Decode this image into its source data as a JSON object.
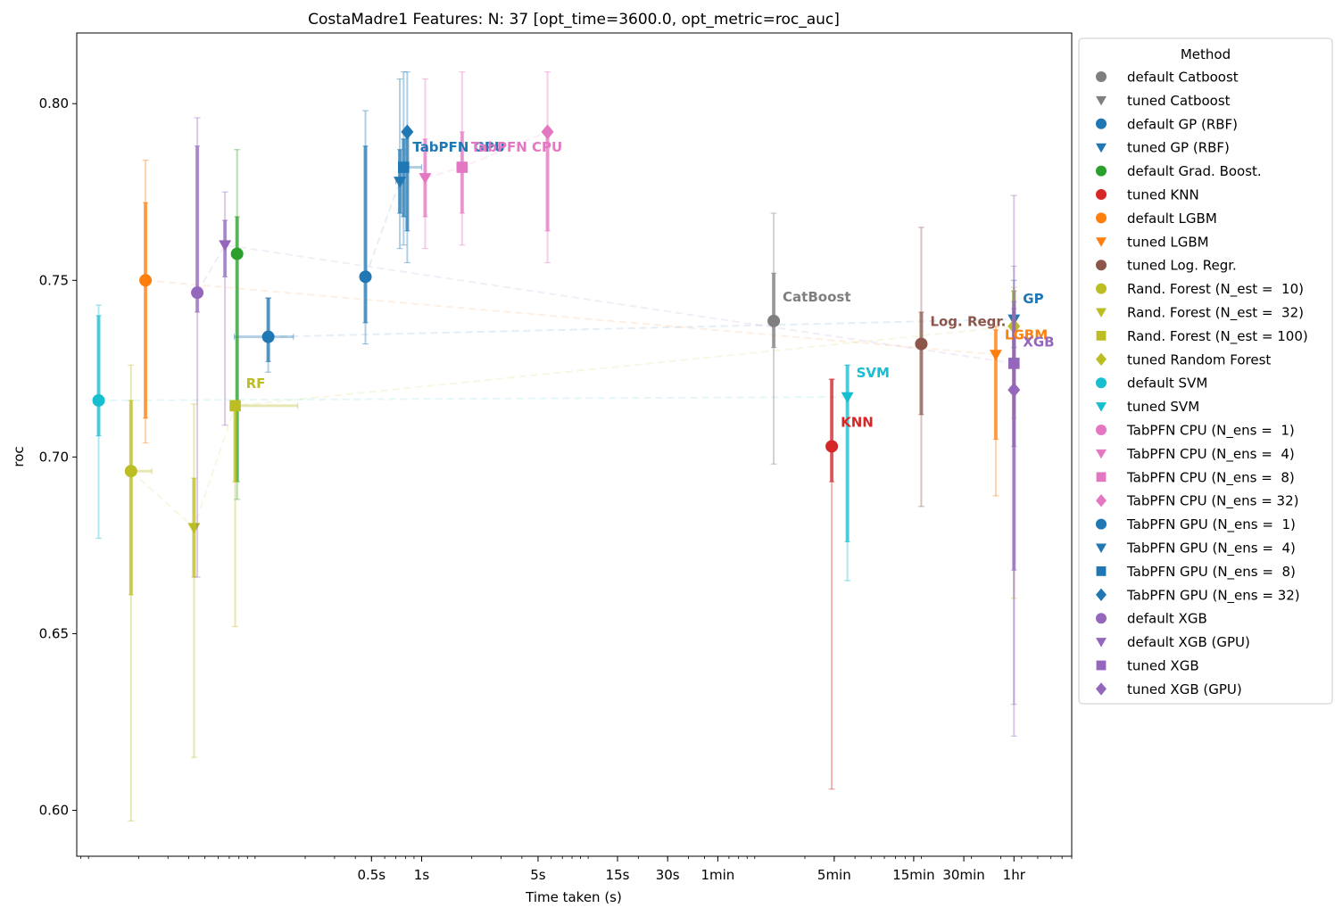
{
  "chart_data": {
    "type": "scatter",
    "title": "CostaMadre1 Features: N: 37 [opt_time=3600.0, opt_metric=roc_auc]",
    "xlabel": "Time taken (s)",
    "ylabel": "roc",
    "x_scale": "log",
    "x_range_seconds": [
      0.0085,
      8000
    ],
    "ylim": [
      0.587,
      0.82
    ],
    "x_ticks": [
      {
        "value": 0.5,
        "label": "0.5s"
      },
      {
        "value": 1,
        "label": "1s"
      },
      {
        "value": 5,
        "label": "5s"
      },
      {
        "value": 15,
        "label": "15s"
      },
      {
        "value": 30,
        "label": "30s"
      },
      {
        "value": 60,
        "label": "1min"
      },
      {
        "value": 300,
        "label": "5min"
      },
      {
        "value": 900,
        "label": "15min"
      },
      {
        "value": 1800,
        "label": "30min"
      },
      {
        "value": 3600,
        "label": "1hr"
      }
    ],
    "y_ticks": [
      0.6,
      0.65,
      0.7,
      0.75,
      0.8
    ],
    "y_tick_labels": [
      "0.60",
      "0.65",
      "0.70",
      "0.75",
      "0.80"
    ],
    "grid": false,
    "legend_title": "Method",
    "legend_position": "outside-right",
    "series": [
      {
        "name": "default Catboost",
        "color": "#7f7f7f",
        "marker": "circle",
        "x": 130,
        "y": 0.7385,
        "ci_inner": [
          0.731,
          0.752
        ],
        "ci_outer": [
          0.698,
          0.769
        ]
      },
      {
        "name": "tuned Catboost",
        "color": "#7f7f7f",
        "marker": "triangle-down",
        "x": null,
        "y": null
      },
      {
        "name": "default GP (RBF)",
        "color": "#1f77b4",
        "marker": "circle",
        "x": 0.12,
        "y": 0.734,
        "ci_inner": [
          0.727,
          0.745
        ],
        "ci_outer": [
          0.724,
          0.745
        ],
        "x_err": [
          0.075,
          0.17
        ]
      },
      {
        "name": "tuned GP (RBF)",
        "color": "#1f77b4",
        "marker": "triangle-down",
        "x": 3600,
        "y": 0.739,
        "ci_inner": [
          0.731,
          0.747
        ],
        "ci_outer": [
          0.728,
          0.75
        ]
      },
      {
        "name": "default Grad. Boost.",
        "color": "#2ca02c",
        "marker": "circle",
        "x": 0.078,
        "y": 0.7575,
        "ci_inner": [
          0.693,
          0.768
        ],
        "ci_outer": [
          0.688,
          0.787
        ]
      },
      {
        "name": "tuned KNN",
        "color": "#d62728",
        "marker": "circle",
        "x": 290,
        "y": 0.703,
        "ci_inner": [
          0.693,
          0.722
        ],
        "ci_outer": [
          0.606,
          0.722
        ]
      },
      {
        "name": "default LGBM",
        "color": "#ff7f0e",
        "marker": "circle",
        "x": 0.022,
        "y": 0.75,
        "ci_inner": [
          0.711,
          0.772
        ],
        "ci_outer": [
          0.704,
          0.784
        ]
      },
      {
        "name": "tuned LGBM",
        "color": "#ff7f0e",
        "marker": "triangle-down",
        "x": 2800,
        "y": 0.729,
        "ci_inner": [
          0.705,
          0.736
        ],
        "ci_outer": [
          0.689,
          0.737
        ]
      },
      {
        "name": "tuned Log. Regr.",
        "color": "#8c564b",
        "marker": "circle",
        "x": 1000,
        "y": 0.732,
        "ci_inner": [
          0.712,
          0.741
        ],
        "ci_outer": [
          0.686,
          0.765
        ]
      },
      {
        "name": "Rand. Forest (N_est =  10)",
        "color": "#bcbd22",
        "marker": "circle",
        "x": 0.018,
        "y": 0.696,
        "ci_inner": [
          0.661,
          0.716
        ],
        "ci_outer": [
          0.597,
          0.726
        ],
        "x_err": [
          0.017,
          0.024
        ]
      },
      {
        "name": "Rand. Forest (N_est =  32)",
        "color": "#bcbd22",
        "marker": "triangle-down",
        "x": 0.043,
        "y": 0.68,
        "ci_inner": [
          0.666,
          0.694
        ],
        "ci_outer": [
          0.615,
          0.715
        ]
      },
      {
        "name": "Rand. Forest (N_est = 100)",
        "color": "#bcbd22",
        "marker": "square",
        "x": 0.076,
        "y": 0.7145,
        "ci_inner": [
          0.693,
          0.714
        ],
        "ci_outer": [
          0.652,
          0.716
        ],
        "x_err": [
          0.072,
          0.18
        ]
      },
      {
        "name": "tuned Random Forest",
        "color": "#bcbd22",
        "marker": "diamond",
        "x": 3600,
        "y": 0.737,
        "ci_inner": [
          0.711,
          0.747
        ],
        "ci_outer": [
          0.66,
          0.748
        ]
      },
      {
        "name": "default SVM",
        "color": "#17becf",
        "marker": "circle",
        "x": 0.0115,
        "y": 0.716,
        "ci_inner": [
          0.706,
          0.74
        ],
        "ci_outer": [
          0.677,
          0.743
        ]
      },
      {
        "name": "tuned SVM",
        "color": "#17becf",
        "marker": "triangle-down",
        "x": 360,
        "y": 0.717,
        "ci_inner": [
          0.676,
          0.726
        ],
        "ci_outer": [
          0.665,
          0.726
        ]
      },
      {
        "name": "TabPFN CPU (N_ens =  1)",
        "color": "#e377c2",
        "marker": "circle",
        "x": null,
        "y": null
      },
      {
        "name": "TabPFN CPU (N_ens =  4)",
        "color": "#e377c2",
        "marker": "triangle-down",
        "x": 1.05,
        "y": 0.779,
        "ci_inner": [
          0.768,
          0.79
        ],
        "ci_outer": [
          0.759,
          0.807
        ]
      },
      {
        "name": "TabPFN CPU (N_ens =  8)",
        "color": "#e377c2",
        "marker": "square",
        "x": 1.75,
        "y": 0.782,
        "ci_inner": [
          0.769,
          0.792
        ],
        "ci_outer": [
          0.76,
          0.809
        ]
      },
      {
        "name": "TabPFN CPU (N_ens = 32)",
        "color": "#e377c2",
        "marker": "diamond",
        "x": 5.7,
        "y": 0.792,
        "ci_inner": [
          0.764,
          0.793
        ],
        "ci_outer": [
          0.755,
          0.809
        ]
      },
      {
        "name": "TabPFN GPU (N_ens =  1)",
        "color": "#1f77b4",
        "marker": "circle",
        "x": 0.46,
        "y": 0.751,
        "ci_inner": [
          0.738,
          0.788
        ],
        "ci_outer": [
          0.732,
          0.798
        ]
      },
      {
        "name": "TabPFN GPU (N_ens =  4)",
        "color": "#1f77b4",
        "marker": "triangle-down",
        "x": 0.74,
        "y": 0.778,
        "ci_inner": [
          0.769,
          0.787
        ],
        "ci_outer": [
          0.759,
          0.807
        ],
        "x_err": [
          0.7,
          0.78
        ]
      },
      {
        "name": "TabPFN GPU (N_ens =  8)",
        "color": "#1f77b4",
        "marker": "square",
        "x": 0.78,
        "y": 0.782,
        "ci_inner": [
          0.768,
          0.79
        ],
        "ci_outer": [
          0.76,
          0.809
        ],
        "x_err": [
          0.74,
          1.0
        ]
      },
      {
        "name": "TabPFN GPU (N_ens = 32)",
        "color": "#1f77b4",
        "marker": "diamond",
        "x": 0.82,
        "y": 0.792,
        "ci_inner": [
          0.764,
          0.793
        ],
        "ci_outer": [
          0.755,
          0.809
        ]
      },
      {
        "name": "default XGB",
        "color": "#9467bd",
        "marker": "circle",
        "x": 0.045,
        "y": 0.7465,
        "ci_inner": [
          0.741,
          0.788
        ],
        "ci_outer": [
          0.666,
          0.796
        ]
      },
      {
        "name": "default XGB (GPU)",
        "color": "#9467bd",
        "marker": "triangle-down",
        "x": 0.066,
        "y": 0.76,
        "ci_inner": [
          0.751,
          0.767
        ],
        "ci_outer": [
          0.709,
          0.775
        ]
      },
      {
        "name": "tuned XGB",
        "color": "#9467bd",
        "marker": "square",
        "x": 3600,
        "y": 0.7265,
        "ci_inner": [
          0.703,
          0.742
        ],
        "ci_outer": [
          0.63,
          0.754
        ]
      },
      {
        "name": "tuned XGB (GPU)",
        "color": "#9467bd",
        "marker": "diamond",
        "x": 3600,
        "y": 0.719,
        "ci_inner": [
          0.668,
          0.744
        ],
        "ci_outer": [
          0.621,
          0.774
        ]
      }
    ],
    "annotations": [
      {
        "text": "CatBoost",
        "color": "#7f7f7f",
        "x": 130,
        "y": 0.7385
      },
      {
        "text": "TabPFN GPU",
        "color": "#1f77b4",
        "x": 0.82,
        "y": 0.792
      },
      {
        "text": "TabPFN CPU",
        "color": "#e377c2",
        "x": 1.75,
        "y": 0.792
      },
      {
        "text": "RF",
        "color": "#bcbd22",
        "x": 0.076,
        "y": 0.7145
      },
      {
        "text": "Log. Regr.",
        "color": "#8c564b",
        "x": 1000,
        "y": 0.732
      },
      {
        "text": "GP",
        "color": "#1f77b4",
        "x": 3600,
        "y": 0.739
      },
      {
        "text": "LGBM",
        "color": "#ff7f0e",
        "x": 2800,
        "y": 0.729
      },
      {
        "text": "XGB",
        "color": "#9467bd",
        "x": 3600,
        "y": 0.7265
      },
      {
        "text": "SVM",
        "color": "#17becf",
        "x": 360,
        "y": 0.717
      },
      {
        "text": "KNN",
        "color": "#d62728",
        "x": 290,
        "y": 0.703
      }
    ],
    "connections": [
      {
        "color": "#1f77b4",
        "x": [
          0.12,
          3600
        ],
        "y": [
          0.734,
          0.739
        ]
      },
      {
        "color": "#ff7f0e",
        "x": [
          0.022,
          2800
        ],
        "y": [
          0.75,
          0.729
        ]
      },
      {
        "color": "#17becf",
        "x": [
          0.0115,
          360
        ],
        "y": [
          0.716,
          0.717
        ]
      },
      {
        "color": "#bcbd22",
        "x": [
          0.018,
          0.043,
          0.076,
          3600
        ],
        "y": [
          0.696,
          0.68,
          0.7145,
          0.737
        ]
      },
      {
        "color": "#9467bd",
        "x": [
          0.045,
          0.066,
          3600,
          3600
        ],
        "y": [
          0.7465,
          0.76,
          0.7265,
          0.719
        ]
      },
      {
        "color": "#e377c2",
        "x": [
          1.05,
          1.75,
          5.7
        ],
        "y": [
          0.779,
          0.782,
          0.792
        ]
      },
      {
        "color": "#1f77b4",
        "x": [
          0.46,
          0.74,
          0.78,
          0.82
        ],
        "y": [
          0.751,
          0.778,
          0.782,
          0.792
        ]
      }
    ]
  }
}
